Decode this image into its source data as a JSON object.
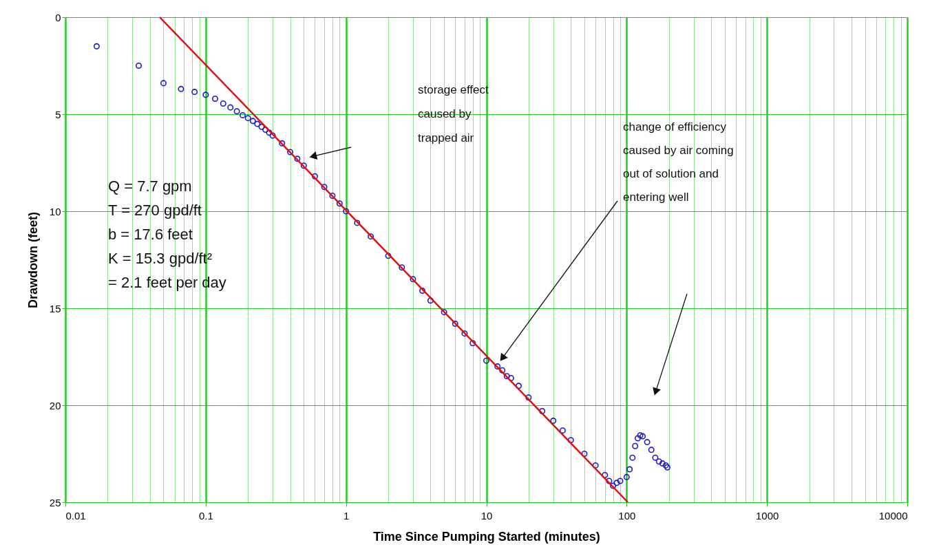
{
  "chart_data": {
    "type": "scatter",
    "xlabel": "Time Since Pumping Started (minutes)",
    "ylabel": "Drawdown (feet)",
    "log": "x",
    "grid": true,
    "xlim": [
      0.01,
      10000
    ],
    "ylim": [
      25,
      0
    ],
    "yticks": [
      0,
      5,
      10,
      15,
      20,
      25
    ],
    "xticks": [
      0.01,
      {
        "value": 0.02,
        "label": null
      },
      {
        "value": 0.03,
        "label": null
      },
      {
        "value": 0.04,
        "label": null
      },
      {
        "value": 0.05,
        "label": null
      },
      {
        "value": 0.06,
        "label": null
      },
      {
        "value": 0.07,
        "label": null
      },
      {
        "value": 0.08,
        "label": null
      },
      {
        "value": 0.09,
        "label": null
      },
      0.1,
      {
        "value": 0.2,
        "label": null
      },
      {
        "value": 0.3,
        "label": null
      },
      {
        "value": 0.4,
        "label": null
      },
      {
        "value": 0.5,
        "label": null
      },
      {
        "value": 0.6,
        "label": null
      },
      {
        "value": 0.7,
        "label": null
      },
      {
        "value": 0.8,
        "label": null
      },
      {
        "value": 0.9,
        "label": null
      },
      1,
      {
        "value": 2,
        "label": null
      },
      {
        "value": 3,
        "label": null
      },
      {
        "value": 4,
        "label": null
      },
      {
        "value": 5,
        "label": null
      },
      {
        "value": 6,
        "label": null
      },
      {
        "value": 7,
        "label": null
      },
      {
        "value": 8,
        "label": null
      },
      {
        "value": 9,
        "label": null
      },
      10,
      {
        "value": 20,
        "label": null
      },
      {
        "value": 30,
        "label": null
      },
      {
        "value": 40,
        "label": null
      },
      {
        "value": 50,
        "label": null
      },
      {
        "value": 60,
        "label": null
      },
      {
        "value": 70,
        "label": null
      },
      {
        "value": 80,
        "label": null
      },
      {
        "value": 90,
        "label": null
      },
      100,
      {
        "value": 200,
        "label": null
      },
      {
        "value": 300,
        "label": null
      },
      {
        "value": 400,
        "label": null
      },
      {
        "value": 500,
        "label": null
      },
      {
        "value": 600,
        "label": null
      },
      {
        "value": 700,
        "label": null
      },
      {
        "value": 800,
        "label": null
      },
      {
        "value": 900,
        "label": null
      },
      1000,
      {
        "value": 2000,
        "label": null
      },
      {
        "value": 3000,
        "label": null
      },
      {
        "value": 4000,
        "label": null
      },
      {
        "value": 5000,
        "label": null
      },
      {
        "value": 6000,
        "label": null
      },
      {
        "value": 7000,
        "label": null
      },
      {
        "value": 8000,
        "label": null
      },
      {
        "value": 9000,
        "label": null
      },
      10000
    ],
    "series": [
      {
        "color": "#1a1acc",
        "marker": "circle",
        "x": [
          0.0167,
          0.0333,
          0.05,
          0.0667,
          0.0833,
          0.1,
          0.1167,
          0.1333,
          0.15,
          0.1667,
          0.1833,
          0.2,
          0.2167,
          0.2333,
          0.25,
          0.2667,
          0.2833,
          0.3,
          0.35,
          0.4,
          0.45,
          0.5,
          0.6,
          0.7,
          0.8,
          0.9,
          1,
          1.2,
          1.5,
          2,
          2.5,
          3,
          3.5,
          4,
          5,
          6,
          7,
          8,
          10,
          12,
          13,
          14,
          15,
          17,
          20,
          25,
          30,
          35,
          40,
          50,
          60,
          70,
          75,
          80,
          85,
          90,
          100,
          105,
          110,
          115,
          120,
          125,
          130,
          140,
          150,
          160,
          170,
          180,
          190,
          195
        ],
        "values": [
          1.5,
          2.5,
          3.4,
          3.7,
          3.85,
          4.0,
          4.2,
          4.45,
          4.65,
          4.85,
          5.05,
          5.2,
          5.35,
          5.5,
          5.65,
          5.8,
          5.95,
          6.1,
          6.5,
          6.95,
          7.3,
          7.65,
          8.2,
          8.75,
          9.2,
          9.6,
          10.0,
          10.6,
          11.3,
          12.3,
          12.9,
          13.5,
          14.1,
          14.6,
          15.2,
          15.8,
          16.3,
          16.8,
          17.7,
          18.0,
          18.2,
          18.5,
          18.6,
          19.0,
          19.6,
          20.3,
          20.8,
          21.3,
          21.8,
          22.5,
          23.1,
          23.6,
          23.9,
          24.15,
          24.0,
          23.9,
          23.7,
          23.3,
          22.7,
          22.1,
          21.7,
          21.55,
          21.6,
          21.9,
          22.3,
          22.7,
          22.9,
          23.0,
          23.1,
          23.2
        ]
      },
      {
        "type": "line",
        "color": "#dd1111",
        "marker": "none",
        "line_style": "solid",
        "x": [
          0.047,
          102
        ],
        "values": [
          0,
          25
        ]
      }
    ],
    "annotations": [
      "storage effect\ncaused by\ntrapped air",
      "change of efficiency\ncaused by air coming\nout of solution and\nentering well",
      "Q = 7.7 gpm\nT = 270 gpd/ft\nb = 17.6 feet\nK = 15.3 gpd/ft²\n    = 2.1 feet per day"
    ]
  }
}
